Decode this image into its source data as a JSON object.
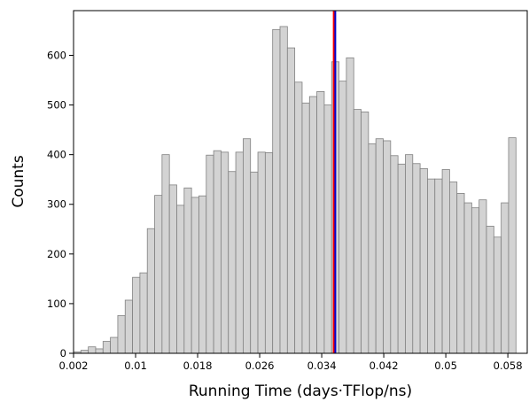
{
  "chart_data": {
    "type": "bar",
    "title": "",
    "xlabel": "Running Time (days·TFlop/ns)",
    "ylabel": "Counts",
    "xlim": [
      0.002,
      0.0605
    ],
    "ylim": [
      0,
      690
    ],
    "bin_width": 0.0009508,
    "bins_start": [
      0.002,
      0.002951,
      0.003902,
      0.004852,
      0.005803,
      0.006754,
      0.007705,
      0.008656,
      0.009606,
      0.010557,
      0.011508,
      0.012459,
      0.01341,
      0.01436,
      0.015311,
      0.016262,
      0.017213,
      0.018164,
      0.019114,
      0.020065,
      0.021016,
      0.021967,
      0.022918,
      0.023869,
      0.024819,
      0.02577,
      0.026721,
      0.027672,
      0.028623,
      0.029573,
      0.030524,
      0.031475,
      0.032426,
      0.033377,
      0.034327,
      0.035278,
      0.036229,
      0.03718,
      0.038131,
      0.039081,
      0.040032,
      0.040983,
      0.041934,
      0.042885,
      0.043835,
      0.044786,
      0.045737,
      0.046688,
      0.047639,
      0.048589,
      0.04954,
      0.050491,
      0.051442,
      0.052393,
      0.053343,
      0.054294,
      0.055245,
      0.056196,
      0.057147,
      0.058097,
      0.059048
    ],
    "counts": [
      3,
      6,
      13,
      9,
      24,
      32,
      76,
      107,
      153,
      162,
      251,
      318,
      400,
      339,
      298,
      333,
      314,
      317,
      399,
      408,
      405,
      366,
      405,
      432,
      365,
      405,
      404,
      652,
      658,
      615,
      546,
      504,
      517,
      527,
      500,
      587,
      548,
      595,
      491,
      486,
      422,
      432,
      428,
      398,
      381,
      400,
      382,
      372,
      351,
      351,
      370,
      345,
      322,
      303,
      293,
      309,
      256,
      234,
      303,
      434
    ],
    "x_ticks": [
      "0.002",
      "0.01",
      "0.018",
      "0.026",
      "0.034",
      "0.042",
      "0.05",
      "0.058"
    ],
    "x_tick_values": [
      0.002,
      0.01,
      0.018,
      0.026,
      0.034,
      0.042,
      0.05,
      0.058
    ],
    "y_ticks": [
      "0",
      "100",
      "200",
      "300",
      "400",
      "500",
      "600"
    ],
    "y_tick_values": [
      0,
      100,
      200,
      300,
      400,
      500,
      600
    ],
    "vertical_lines": [
      {
        "x": 0.03555,
        "color": "#ff0000"
      },
      {
        "x": 0.03575,
        "color": "#0000cc"
      }
    ],
    "colors": {
      "bar_fill": "#d3d3d3",
      "bar_edge": "#808080"
    },
    "grid": false
  }
}
